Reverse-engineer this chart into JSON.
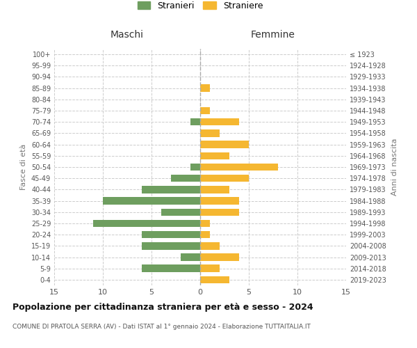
{
  "age_groups": [
    "0-4",
    "5-9",
    "10-14",
    "15-19",
    "20-24",
    "25-29",
    "30-34",
    "35-39",
    "40-44",
    "45-49",
    "50-54",
    "55-59",
    "60-64",
    "65-69",
    "70-74",
    "75-79",
    "80-84",
    "85-89",
    "90-94",
    "95-99",
    "100+"
  ],
  "birth_years": [
    "2019-2023",
    "2014-2018",
    "2009-2013",
    "2004-2008",
    "1999-2003",
    "1994-1998",
    "1989-1993",
    "1984-1988",
    "1979-1983",
    "1974-1978",
    "1969-1973",
    "1964-1968",
    "1959-1963",
    "1954-1958",
    "1949-1953",
    "1944-1948",
    "1939-1943",
    "1934-1938",
    "1929-1933",
    "1924-1928",
    "≤ 1923"
  ],
  "males": [
    0,
    6,
    2,
    6,
    6,
    11,
    4,
    10,
    6,
    3,
    1,
    0,
    0,
    0,
    1,
    0,
    0,
    0,
    0,
    0,
    0
  ],
  "females": [
    3,
    2,
    4,
    2,
    1,
    1,
    4,
    4,
    3,
    5,
    8,
    3,
    5,
    2,
    4,
    1,
    0,
    1,
    0,
    0,
    0
  ],
  "male_color": "#6e9e5f",
  "female_color": "#f5b731",
  "title": "Popolazione per cittadinanza straniera per età e sesso - 2024",
  "subtitle": "COMUNE DI PRATOLA SERRA (AV) - Dati ISTAT al 1° gennaio 2024 - Elaborazione TUTTAITALIA.IT",
  "ylabel_left": "Fasce di età",
  "ylabel_right": "Anni di nascita",
  "xlabel_left": "Maschi",
  "xlabel_right": "Femmine",
  "legend_males": "Stranieri",
  "legend_females": "Straniere",
  "xlim": 15,
  "background_color": "#ffffff",
  "grid_color": "#cccccc"
}
